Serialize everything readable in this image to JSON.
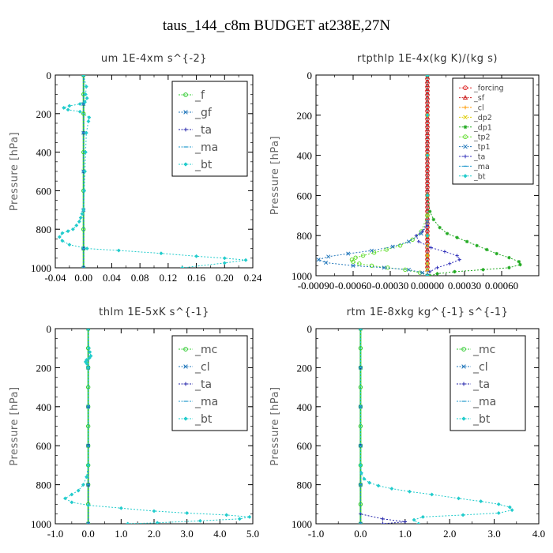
{
  "figure": {
    "title": "taus_144_c8m  BUDGET at238E,27N"
  },
  "chart_data": [
    {
      "type": "line",
      "title": "um   1E-4xm s^{-2}",
      "ylabel": "Pressure [hPa]",
      "xlim": [
        -0.04,
        0.24
      ],
      "ylim": [
        1000,
        0
      ],
      "xticks": [
        "-0.04",
        "0.00",
        "0.04",
        "0.08",
        "0.12",
        "0.16",
        "0.20",
        "0.24"
      ],
      "xtick_values": [
        -0.04,
        0.0,
        0.04,
        0.08,
        0.12,
        0.16,
        0.2,
        0.24
      ],
      "yticks": [
        "0",
        "200",
        "400",
        "600",
        "800",
        "1000"
      ],
      "ytick_values": [
        0,
        200,
        400,
        600,
        800,
        1000
      ],
      "legend": {
        "placement": "top-right",
        "size": "large"
      },
      "series": [
        {
          "name": "_f",
          "color": "#33cc33",
          "marker": "circle",
          "x": [
            0.0,
            0.0,
            0.0,
            0.0,
            0.0,
            0.0,
            0.0,
            0.0
          ],
          "y": [
            0,
            100,
            200,
            400,
            600,
            800,
            900,
            1000
          ]
        },
        {
          "name": "_gf",
          "color": "#2277bb",
          "marker": "x",
          "x": [
            0,
            0,
            0,
            0,
            0,
            0,
            0
          ],
          "y": [
            0,
            150,
            300,
            500,
            700,
            900,
            1000
          ]
        },
        {
          "name": "_ta",
          "color": "#2222aa",
          "marker": "plus",
          "x": [
            0,
            0,
            0,
            0,
            0,
            0,
            0
          ],
          "y": [
            0,
            150,
            300,
            500,
            700,
            900,
            1000
          ]
        },
        {
          "name": "_ma",
          "color": "#2299cc",
          "marker": "dash",
          "x": [
            0,
            0,
            0,
            0,
            0,
            0,
            0
          ],
          "y": [
            0,
            150,
            300,
            500,
            700,
            900,
            1000
          ]
        },
        {
          "name": "_bt",
          "color": "#22cccc",
          "marker": "diamond",
          "x": [
            0.0,
            0.004,
            0.003,
            0.005,
            0.002,
            -0.005,
            -0.02,
            -0.028,
            -0.022,
            -0.005,
            0.008,
            0.007,
            0.004,
            0.003,
            0.002,
            0.001,
            0.0,
            -0.002,
            -0.004,
            -0.006,
            -0.01,
            -0.015,
            -0.022,
            -0.03,
            -0.034,
            -0.03,
            -0.02,
            0.005,
            0.05,
            0.11,
            0.16,
            0.2,
            0.23,
            0.2,
            0.14
          ],
          "y": [
            0,
            60,
            100,
            120,
            140,
            150,
            160,
            170,
            180,
            190,
            220,
            240,
            300,
            400,
            500,
            600,
            700,
            720,
            740,
            760,
            780,
            800,
            810,
            820,
            840,
            860,
            880,
            900,
            910,
            925,
            940,
            950,
            960,
            975,
            1000
          ]
        }
      ]
    },
    {
      "type": "line",
      "title": "rtpthlp   1E-4x(kg K)/(kg s)",
      "ylabel": "Pressure [hPa]",
      "xlim": [
        -0.0009,
        0.0009
      ],
      "ylim": [
        1000,
        0
      ],
      "xticks": [
        "-0.00090",
        "-0.00060",
        "-0.00030",
        "0.00000",
        "0.00030",
        "0.00060"
      ],
      "xtick_values": [
        -0.0009,
        -0.0006,
        -0.0003,
        0.0,
        0.0003,
        0.0006
      ],
      "yticks": [
        "0",
        "200",
        "400",
        "600",
        "800",
        "1000"
      ],
      "ytick_values": [
        0,
        200,
        400,
        600,
        800,
        1000
      ],
      "legend": {
        "placement": "top-right",
        "size": "small"
      },
      "series": [
        {
          "name": "_forcing",
          "color": "#dd2222",
          "marker": "circle",
          "x": [
            0,
            0,
            0,
            0,
            0,
            0,
            0,
            0,
            0,
            0,
            0,
            0,
            0,
            0,
            0,
            0,
            0,
            0,
            0,
            0,
            0,
            0,
            0,
            0,
            0,
            0,
            0,
            0,
            0,
            0,
            0,
            0,
            0,
            0,
            0,
            0,
            0,
            0,
            0,
            0,
            0,
            0,
            0,
            0,
            0,
            0,
            0,
            0,
            0
          ],
          "y": [
            0,
            20,
            40,
            60,
            80,
            100,
            120,
            140,
            160,
            180,
            200,
            220,
            240,
            260,
            280,
            300,
            320,
            340,
            360,
            380,
            400,
            420,
            440,
            460,
            480,
            500,
            520,
            540,
            560,
            580,
            600,
            620,
            640,
            660,
            680,
            700,
            720,
            740,
            760,
            780,
            800,
            820,
            840,
            860,
            880,
            900,
            920,
            940,
            960
          ]
        },
        {
          "name": "_sf",
          "color": "#cc2222",
          "marker": "triangle",
          "x": [
            0,
            0,
            0,
            0,
            0,
            0,
            0,
            0,
            0,
            0,
            0,
            0,
            0,
            0,
            0,
            0,
            0,
            0,
            0,
            0,
            0,
            0,
            0,
            0,
            0,
            0,
            0,
            0,
            0,
            0,
            0,
            0,
            0,
            0,
            0,
            0,
            0,
            0,
            0,
            0,
            0,
            0,
            0,
            0,
            0,
            0,
            0,
            0,
            0
          ],
          "y": [
            10,
            30,
            50,
            70,
            90,
            110,
            130,
            150,
            170,
            190,
            210,
            230,
            250,
            270,
            290,
            310,
            330,
            350,
            370,
            390,
            410,
            430,
            450,
            470,
            490,
            510,
            530,
            550,
            570,
            590,
            610,
            630,
            650,
            670,
            690,
            710,
            730,
            750,
            770,
            790,
            810,
            830,
            850,
            870,
            890,
            910,
            930,
            950,
            970
          ]
        },
        {
          "name": "_cl",
          "color": "#ff9900",
          "marker": "plus",
          "x": [
            0,
            0,
            0,
            0,
            0,
            0,
            0
          ],
          "y": [
            0,
            200,
            400,
            600,
            800,
            900,
            1000
          ]
        },
        {
          "name": "_dp2",
          "color": "#ddcc00",
          "marker": "x",
          "x": [
            0,
            0,
            0,
            0,
            0,
            0,
            0,
            0,
            0,
            0,
            0
          ],
          "y": [
            0,
            200,
            400,
            600,
            700,
            800,
            850,
            900,
            940,
            970,
            1000
          ]
        },
        {
          "name": "_dp1",
          "color": "#22aa22",
          "marker": "star",
          "x": [
            0,
            0,
            2e-05,
            5e-05,
            0.0001,
            0.00016,
            0.00024,
            0.00032,
            0.0004,
            0.00048,
            0.00056,
            0.00066,
            0.00074,
            0.00075,
            0.00066,
            0.00045,
            0.00022,
            8e-05,
            2e-05
          ],
          "y": [
            0,
            600,
            680,
            720,
            760,
            790,
            810,
            830,
            850,
            870,
            890,
            910,
            930,
            945,
            960,
            970,
            980,
            990,
            1000
          ]
        },
        {
          "name": "_tp2",
          "color": "#66dd33",
          "marker": "circle",
          "x": [
            0,
            0,
            -5e-05,
            -0.00012,
            -0.00022,
            -0.00033,
            -0.00043,
            -0.00052,
            -0.00058,
            -0.00061,
            -0.0006,
            -0.00055,
            -0.00045,
            -0.00032,
            -0.00018,
            -6e-05,
            0
          ],
          "y": [
            0,
            700,
            780,
            820,
            850,
            870,
            885,
            900,
            910,
            920,
            930,
            940,
            950,
            960,
            970,
            985,
            1000
          ]
        },
        {
          "name": "_tp1",
          "color": "#2277bb",
          "marker": "x",
          "x": [
            0,
            0,
            -5e-05,
            -0.00015,
            -0.00028,
            -0.00045,
            -0.00064,
            -0.0008,
            -0.00088,
            -0.00082,
            -0.0006,
            -0.00035,
            -0.00015,
            -4e-05,
            0
          ],
          "y": [
            0,
            730,
            790,
            830,
            855,
            875,
            890,
            905,
            920,
            935,
            950,
            960,
            970,
            985,
            1000
          ]
        },
        {
          "name": "_ta",
          "color": "#3333bb",
          "marker": "plus",
          "x": [
            0,
            0,
            -4e-05,
            -9e-05,
            -7e-05,
            3e-05,
            0.00014,
            0.00024,
            0.00026,
            0.00018,
            8e-05,
            2e-05,
            0
          ],
          "y": [
            0,
            750,
            780,
            800,
            830,
            860,
            880,
            900,
            920,
            940,
            960,
            980,
            1000
          ]
        },
        {
          "name": "_ma",
          "color": "#2299cc",
          "marker": "dash",
          "x": [
            0,
            0,
            0,
            0,
            0,
            0
          ],
          "y": [
            0,
            200,
            400,
            600,
            800,
            1000
          ]
        },
        {
          "name": "_bt",
          "color": "#22cccc",
          "marker": "diamond",
          "x": [
            0,
            0,
            0,
            0,
            0,
            0
          ],
          "y": [
            0,
            200,
            400,
            600,
            800,
            1000
          ]
        }
      ]
    },
    {
      "type": "line",
      "title": "thlm   1E-5xK  s^{-1}",
      "ylabel": "Pressure [hPa]",
      "xlim": [
        -1.0,
        5.0
      ],
      "ylim": [
        1000,
        0
      ],
      "xticks": [
        "-1.0",
        "0.0",
        "1.0",
        "2.0",
        "3.0",
        "4.0",
        "5.0"
      ],
      "xtick_values": [
        -1.0,
        0.0,
        1.0,
        2.0,
        3.0,
        4.0,
        5.0
      ],
      "yticks": [
        "0",
        "200",
        "400",
        "600",
        "800",
        "1000"
      ],
      "ytick_values": [
        0,
        200,
        400,
        600,
        800,
        1000
      ],
      "legend": {
        "placement": "top-right",
        "size": "large"
      },
      "series": [
        {
          "name": "_mc",
          "color": "#33cc33",
          "marker": "circle",
          "x": [
            0,
            0,
            0,
            0,
            0,
            0,
            0,
            0,
            0,
            0,
            0
          ],
          "y": [
            0,
            100,
            200,
            300,
            400,
            500,
            600,
            700,
            800,
            900,
            1000
          ]
        },
        {
          "name": "_cl",
          "color": "#2277bb",
          "marker": "x",
          "x": [
            0,
            0,
            0,
            0,
            0,
            0
          ],
          "y": [
            0,
            200,
            400,
            600,
            800,
            1000
          ]
        },
        {
          "name": "_ta",
          "color": "#2222aa",
          "marker": "plus",
          "x": [
            0,
            0,
            0,
            0,
            0,
            0
          ],
          "y": [
            0,
            200,
            400,
            600,
            800,
            1000
          ]
        },
        {
          "name": "_ma",
          "color": "#2299cc",
          "marker": "dash",
          "x": [
            0,
            0,
            0,
            0,
            0,
            0
          ],
          "y": [
            0,
            200,
            400,
            600,
            800,
            1000
          ]
        },
        {
          "name": "_bt",
          "color": "#22cccc",
          "marker": "diamond",
          "x": [
            0.0,
            0.02,
            0.05,
            0.08,
            0.04,
            -0.05,
            -0.08,
            -0.04,
            0.0,
            0.0,
            -0.05,
            -0.15,
            -0.3,
            -0.5,
            -0.7,
            -0.5,
            0.0,
            1.0,
            2.0,
            3.0,
            4.2,
            4.9,
            4.6,
            3.4,
            2.1,
            1.2
          ],
          "y": [
            0,
            100,
            120,
            140,
            150,
            160,
            170,
            180,
            200,
            700,
            760,
            800,
            830,
            850,
            870,
            890,
            905,
            920,
            935,
            945,
            955,
            965,
            975,
            985,
            995,
            1000
          ]
        }
      ]
    },
    {
      "type": "line",
      "title": "rtm   1E-8xkg kg^{-1} s^{-1}",
      "ylabel": "Pressure [hPa]",
      "xlim": [
        -1.0,
        4.0
      ],
      "ylim": [
        1000,
        0
      ],
      "xticks": [
        "-1.0",
        "0.0",
        "1.0",
        "2.0",
        "3.0",
        "4.0"
      ],
      "xtick_values": [
        -1.0,
        0.0,
        1.0,
        2.0,
        3.0,
        4.0
      ],
      "yticks": [
        "0",
        "200",
        "400",
        "600",
        "800",
        "1000"
      ],
      "ytick_values": [
        0,
        200,
        400,
        600,
        800,
        1000
      ],
      "legend": {
        "placement": "top-right",
        "size": "large"
      },
      "series": [
        {
          "name": "_mc",
          "color": "#33cc33",
          "marker": "circle",
          "x": [
            0,
            0,
            0,
            0,
            0,
            0,
            0,
            0,
            0,
            0,
            0
          ],
          "y": [
            0,
            100,
            200,
            300,
            400,
            500,
            600,
            700,
            800,
            900,
            1000
          ]
        },
        {
          "name": "_cl",
          "color": "#2277bb",
          "marker": "x",
          "x": [
            0,
            0,
            0,
            0,
            0,
            0
          ],
          "y": [
            0,
            200,
            400,
            600,
            800,
            1000
          ]
        },
        {
          "name": "_ta",
          "color": "#2222aa",
          "marker": "plus",
          "x": [
            0,
            0,
            0,
            0,
            0.5,
            1.0,
            0.5
          ],
          "y": [
            0,
            200,
            600,
            950,
            975,
            990,
            1000
          ]
        },
        {
          "name": "_ma",
          "color": "#2299cc",
          "marker": "dash",
          "x": [
            0,
            0,
            0,
            0,
            0,
            0
          ],
          "y": [
            0,
            200,
            400,
            600,
            800,
            1000
          ]
        },
        {
          "name": "_bt",
          "color": "#22cccc",
          "marker": "diamond",
          "x": [
            0.0,
            0.0,
            0.02,
            0.08,
            0.2,
            0.4,
            0.7,
            1.1,
            1.6,
            2.2,
            2.7,
            3.1,
            3.35,
            3.4,
            3.1,
            2.3,
            1.4,
            1.2,
            1.3
          ],
          "y": [
            0,
            700,
            740,
            770,
            790,
            805,
            820,
            835,
            850,
            870,
            885,
            900,
            915,
            930,
            945,
            955,
            965,
            980,
            1000
          ]
        }
      ]
    }
  ]
}
